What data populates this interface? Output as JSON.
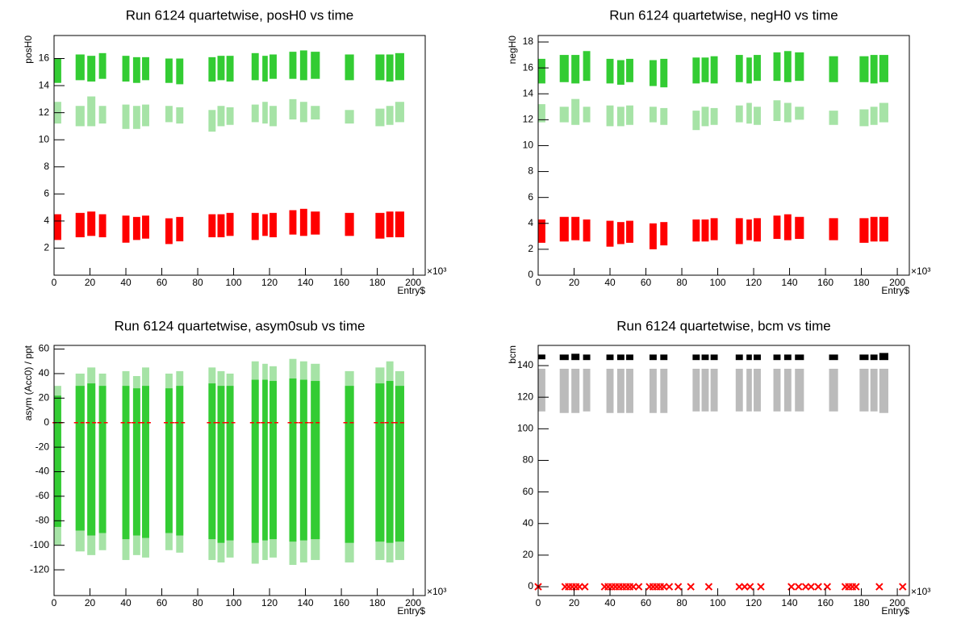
{
  "chart_data": [
    {
      "type": "range",
      "title": "Run 6124 quartetwise, posH0 vs time",
      "ylabel": "posH0",
      "xlabel": "Entry$",
      "xmultiplier": "×10³",
      "xlim": [
        0,
        206.7
      ],
      "xticks": [
        0,
        20,
        40,
        60,
        80,
        100,
        120,
        140,
        160,
        180,
        200
      ],
      "ylim": [
        0,
        17.7
      ],
      "yticks": [
        2,
        4,
        6,
        8,
        10,
        12,
        14,
        16
      ],
      "x0": [
        0,
        12,
        18.5,
        25,
        38,
        44,
        49,
        62,
        68,
        86,
        91,
        96,
        110,
        116,
        120,
        131,
        137,
        143,
        162,
        179,
        185,
        190
      ],
      "x1": [
        4,
        17,
        23,
        29,
        42,
        48,
        53,
        66,
        72,
        90,
        95,
        100,
        114,
        119,
        124,
        135,
        141,
        148,
        167,
        184,
        189,
        195
      ],
      "series": [
        {
          "color": "#33cc33",
          "low": [
            14.2,
            14.4,
            14.3,
            14.5,
            14.3,
            14.2,
            14.4,
            14.2,
            14.1,
            14.3,
            14.4,
            14.3,
            14.4,
            14.3,
            14.5,
            14.5,
            14.4,
            14.5,
            14.4,
            14.4,
            14.3,
            14.4
          ],
          "high": [
            16.0,
            16.3,
            16.2,
            16.4,
            16.2,
            16.1,
            16.1,
            16.0,
            16.0,
            16.1,
            16.2,
            16.2,
            16.4,
            16.2,
            16.3,
            16.5,
            16.6,
            16.5,
            16.3,
            16.3,
            16.3,
            16.4
          ]
        },
        {
          "color": "#a6e3a6",
          "low": [
            11.2,
            11.0,
            11.0,
            11.2,
            10.8,
            10.8,
            11.0,
            11.3,
            11.2,
            10.6,
            11.0,
            11.1,
            11.3,
            11.2,
            11.0,
            11.5,
            11.3,
            11.5,
            11.2,
            11.0,
            11.1,
            11.3
          ],
          "high": [
            12.8,
            12.5,
            13.2,
            12.5,
            12.6,
            12.5,
            12.6,
            12.5,
            12.4,
            12.2,
            12.5,
            12.4,
            12.6,
            12.8,
            12.5,
            13.0,
            12.8,
            12.5,
            12.2,
            12.3,
            12.5,
            12.8
          ]
        },
        {
          "color": "#ff0000",
          "low": [
            2.6,
            2.8,
            2.9,
            2.8,
            2.4,
            2.6,
            2.7,
            2.3,
            2.5,
            2.8,
            2.8,
            2.9,
            2.6,
            2.9,
            2.8,
            3.0,
            2.9,
            3.0,
            2.9,
            2.7,
            2.8,
            2.8
          ],
          "high": [
            4.5,
            4.6,
            4.7,
            4.5,
            4.4,
            4.3,
            4.4,
            4.2,
            4.3,
            4.5,
            4.5,
            4.6,
            4.6,
            4.5,
            4.6,
            4.8,
            4.9,
            4.7,
            4.6,
            4.6,
            4.7,
            4.7
          ]
        }
      ]
    },
    {
      "type": "range",
      "title": "Run 6124 quartetwise, negH0 vs time",
      "ylabel": "negH0",
      "xlabel": "Entry$",
      "xmultiplier": "×10³",
      "xlim": [
        0,
        206.7
      ],
      "xticks": [
        0,
        20,
        40,
        60,
        80,
        100,
        120,
        140,
        160,
        180,
        200
      ],
      "ylim": [
        0,
        18.5
      ],
      "yticks": [
        0,
        2,
        4,
        6,
        8,
        10,
        12,
        14,
        16,
        18
      ],
      "x0": [
        0,
        12,
        18.5,
        25,
        38,
        44,
        49,
        62,
        68,
        86,
        91,
        96,
        110,
        116,
        120,
        131,
        137,
        143,
        162,
        179,
        185,
        190
      ],
      "x1": [
        4,
        17,
        23,
        29,
        42,
        48,
        53,
        66,
        72,
        90,
        95,
        100,
        114,
        119,
        124,
        135,
        141,
        148,
        167,
        184,
        189,
        195
      ],
      "series": [
        {
          "color": "#33cc33",
          "low": [
            14.8,
            14.9,
            14.8,
            15.0,
            14.8,
            14.7,
            14.9,
            14.6,
            14.5,
            14.8,
            14.9,
            14.8,
            14.9,
            14.8,
            15.0,
            15.0,
            14.9,
            15.0,
            14.9,
            14.9,
            14.8,
            14.9
          ],
          "high": [
            16.7,
            17.0,
            17.0,
            17.3,
            16.7,
            16.6,
            16.7,
            16.6,
            16.7,
            16.8,
            16.8,
            16.9,
            17.0,
            16.8,
            17.0,
            17.2,
            17.3,
            17.2,
            16.9,
            16.9,
            17.0,
            17.0
          ]
        },
        {
          "color": "#a6e3a6",
          "low": [
            11.8,
            11.8,
            11.6,
            11.8,
            11.5,
            11.5,
            11.6,
            11.8,
            11.6,
            11.2,
            11.5,
            11.6,
            11.8,
            11.7,
            11.6,
            11.9,
            11.8,
            12.0,
            11.6,
            11.5,
            11.6,
            11.8
          ],
          "high": [
            13.2,
            13.0,
            13.6,
            13.0,
            13.1,
            13.0,
            13.1,
            13.0,
            12.9,
            12.7,
            13.0,
            12.9,
            13.1,
            13.3,
            13.0,
            13.5,
            13.3,
            13.0,
            12.7,
            12.8,
            13.0,
            13.3
          ]
        },
        {
          "color": "#ff0000",
          "low": [
            2.5,
            2.6,
            2.7,
            2.6,
            2.2,
            2.4,
            2.5,
            2.0,
            2.3,
            2.6,
            2.6,
            2.7,
            2.4,
            2.7,
            2.6,
            2.8,
            2.7,
            2.8,
            2.7,
            2.5,
            2.6,
            2.6
          ],
          "high": [
            4.3,
            4.5,
            4.5,
            4.3,
            4.2,
            4.1,
            4.2,
            4.0,
            4.1,
            4.3,
            4.3,
            4.4,
            4.4,
            4.3,
            4.4,
            4.6,
            4.7,
            4.5,
            4.4,
            4.4,
            4.5,
            4.5
          ]
        }
      ]
    },
    {
      "type": "range",
      "title": "Run 6124 quartetwise, asym0sub vs time",
      "ylabel": "asym (Acc0) / ppt",
      "xlabel": "Entry$",
      "xmultiplier": "×10³",
      "xlim": [
        0,
        206.7
      ],
      "xticks": [
        0,
        20,
        40,
        60,
        80,
        100,
        120,
        140,
        160,
        180,
        200
      ],
      "ylim": [
        -141,
        63
      ],
      "yticks": [
        -120,
        -100,
        -80,
        -60,
        -40,
        -20,
        0,
        20,
        40,
        60
      ],
      "reference_line": 0,
      "reference_color": "#ff0000",
      "x0": [
        0,
        12,
        18.5,
        25,
        38,
        44,
        49,
        62,
        68,
        86,
        91,
        96,
        110,
        116,
        120,
        131,
        137,
        143,
        162,
        179,
        185,
        190
      ],
      "x1": [
        4,
        17,
        23,
        29,
        42,
        48,
        53,
        66,
        72,
        90,
        95,
        100,
        114,
        119,
        124,
        135,
        141,
        148,
        167,
        184,
        189,
        195
      ],
      "series": [
        {
          "color": "#33cc33",
          "low": [
            -85,
            -88,
            -92,
            -90,
            -95,
            -92,
            -94,
            -90,
            -92,
            -95,
            -98,
            -96,
            -98,
            -96,
            -95,
            -97,
            -96,
            -95,
            -98,
            -97,
            -98,
            -97
          ],
          "high": [
            22,
            30,
            32,
            30,
            30,
            28,
            30,
            28,
            30,
            32,
            30,
            30,
            35,
            35,
            34,
            36,
            35,
            34,
            30,
            32,
            34,
            30
          ]
        },
        {
          "color": "#a6e3a6",
          "low": [
            -100,
            -105,
            -108,
            -104,
            -112,
            -108,
            -110,
            -104,
            -106,
            -112,
            -114,
            -110,
            -115,
            -112,
            -110,
            -116,
            -114,
            -112,
            -114,
            -112,
            -114,
            -112
          ],
          "high": [
            30,
            40,
            45,
            40,
            42,
            38,
            45,
            40,
            42,
            45,
            42,
            40,
            50,
            48,
            46,
            52,
            50,
            48,
            42,
            45,
            50,
            42
          ]
        }
      ]
    },
    {
      "type": "range",
      "title": "Run 6124 quartetwise, bcm vs time",
      "ylabel": "bcm",
      "xlabel": "Entry$",
      "xmultiplier": "×10³",
      "xlim": [
        0,
        206.7
      ],
      "xticks": [
        0,
        20,
        40,
        60,
        80,
        100,
        120,
        140,
        160,
        180,
        200
      ],
      "ylim": [
        -5.6,
        152.8
      ],
      "yticks": [
        0,
        20,
        40,
        60,
        80,
        100,
        120,
        140
      ],
      "x0": [
        0,
        12,
        18.5,
        25,
        38,
        44,
        49,
        62,
        68,
        86,
        91,
        96,
        110,
        116,
        120,
        131,
        137,
        143,
        162,
        179,
        185,
        190
      ],
      "x1": [
        4,
        17,
        23,
        29,
        42,
        48,
        53,
        66,
        72,
        90,
        95,
        100,
        114,
        119,
        124,
        135,
        141,
        148,
        167,
        184,
        189,
        195
      ],
      "series": [
        {
          "color": "#000000",
          "low": [
            144,
            143.5,
            143.5,
            143.5,
            143.5,
            143.5,
            143.5,
            143.5,
            143.5,
            143.5,
            143.5,
            143.5,
            143.5,
            143.5,
            143.5,
            143.5,
            143.5,
            143.5,
            143.5,
            143.5,
            143.5,
            143.5
          ],
          "high": [
            147,
            147,
            147.5,
            147,
            147,
            147,
            147,
            147,
            147,
            147,
            147,
            147,
            147,
            147,
            147,
            147,
            147,
            147,
            147,
            147,
            147,
            148
          ]
        },
        {
          "color": "#bbbbbb",
          "low": [
            111,
            110,
            110,
            111,
            110,
            110,
            110,
            110,
            110,
            111,
            111,
            111,
            111,
            111,
            111,
            111,
            111,
            111,
            111,
            111,
            111,
            110
          ],
          "high": [
            138,
            138,
            138,
            138,
            138,
            138,
            138,
            138,
            138,
            138,
            138,
            138,
            138,
            138,
            138,
            138,
            138,
            138,
            138,
            138,
            138,
            138
          ]
        }
      ],
      "markers": {
        "color": "#ff0000",
        "x": [
          0,
          15,
          17,
          19,
          21,
          23,
          26,
          37,
          39,
          41,
          43,
          45,
          47,
          49,
          51,
          53,
          56,
          62,
          64,
          66,
          68,
          70,
          73,
          78,
          85,
          95,
          112,
          115,
          118,
          124,
          141,
          145,
          149,
          152,
          156,
          161,
          171,
          173,
          175,
          177,
          190,
          203
        ],
        "y": [
          0,
          0,
          0,
          0,
          0,
          0,
          0,
          0,
          0,
          0,
          0,
          0,
          0,
          0,
          0,
          0,
          0,
          0,
          0,
          0,
          0,
          0,
          0,
          0,
          0,
          0,
          0,
          0,
          0,
          0,
          0,
          0,
          0,
          0,
          0,
          0,
          0,
          0,
          0,
          0,
          0,
          0
        ]
      }
    }
  ]
}
